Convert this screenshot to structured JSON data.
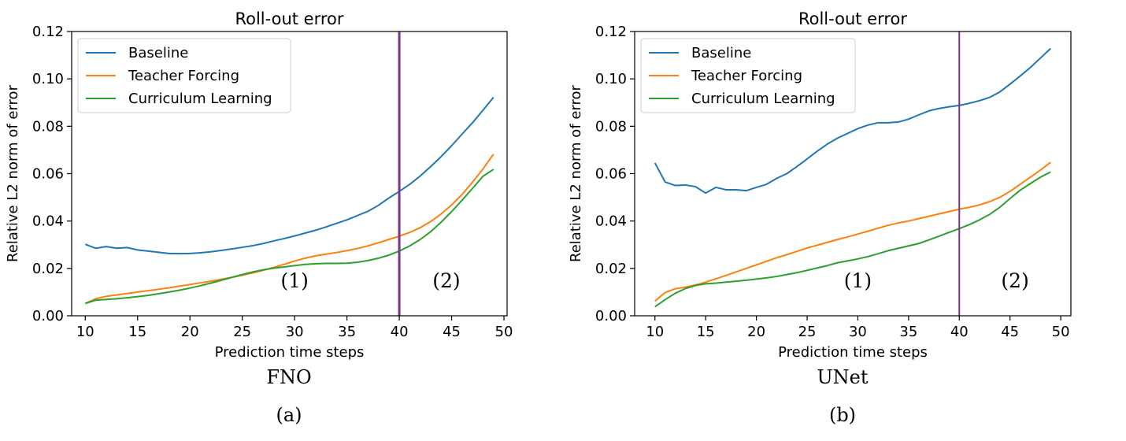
{
  "colors": {
    "baseline": "#1f77b4",
    "teacher_forcing": "#ff7f0e",
    "curriculum": "#2ca02c",
    "divider": "#7b3294",
    "axis": "#000000"
  },
  "chart_data": [
    {
      "type": "line",
      "title": "Roll-out error",
      "xlabel": "Prediction time steps",
      "ylabel": "Relative L2 norm of error",
      "caption": "FNO",
      "sublabel": "(a)",
      "xlim": [
        8.7,
        50.3
      ],
      "ylim": [
        0,
        0.12
      ],
      "xticks": [
        "10",
        "15",
        "20",
        "25",
        "30",
        "35",
        "40",
        "45",
        "50"
      ],
      "yticks": [
        "0.00",
        "0.02",
        "0.04",
        "0.06",
        "0.08",
        "0.10",
        "0.12"
      ],
      "vline": 40,
      "regions": [
        {
          "label": "(1)",
          "x": 30,
          "y": 0.012
        },
        {
          "label": "(2)",
          "x": 44.5,
          "y": 0.012
        }
      ],
      "legend_position": "top-left",
      "grid": false,
      "x": [
        10,
        11,
        12,
        13,
        14,
        15,
        16,
        17,
        18,
        19,
        20,
        21,
        22,
        23,
        24,
        25,
        26,
        27,
        28,
        29,
        30,
        31,
        32,
        33,
        34,
        35,
        36,
        37,
        38,
        39,
        40,
        41,
        42,
        43,
        44,
        45,
        46,
        47,
        48,
        49
      ],
      "series": [
        {
          "name": "Baseline",
          "color_key": "baseline",
          "values": [
            0.0302,
            0.0285,
            0.0292,
            0.0285,
            0.0288,
            0.0278,
            0.0273,
            0.0268,
            0.0263,
            0.0262,
            0.0263,
            0.0266,
            0.027,
            0.0276,
            0.0282,
            0.0289,
            0.0296,
            0.0305,
            0.0316,
            0.0326,
            0.0337,
            0.0349,
            0.0361,
            0.0375,
            0.039,
            0.0405,
            0.0423,
            0.0441,
            0.0466,
            0.0497,
            0.0525,
            0.0555,
            0.059,
            0.063,
            0.0672,
            0.0718,
            0.0767,
            0.0815,
            0.0868,
            0.0922
          ]
        },
        {
          "name": "Teacher Forcing",
          "color_key": "teacher_forcing",
          "values": [
            0.0052,
            0.0072,
            0.0082,
            0.0088,
            0.0094,
            0.01,
            0.0106,
            0.0112,
            0.0118,
            0.0125,
            0.0132,
            0.0139,
            0.0146,
            0.0154,
            0.0162,
            0.0171,
            0.0181,
            0.0192,
            0.0204,
            0.0217,
            0.0231,
            0.0243,
            0.0253,
            0.026,
            0.0267,
            0.0275,
            0.0284,
            0.0295,
            0.0308,
            0.0322,
            0.0336,
            0.0352,
            0.0372,
            0.0398,
            0.043,
            0.0468,
            0.0512,
            0.0564,
            0.062,
            0.0682
          ]
        },
        {
          "name": "Curriculum Learning",
          "color_key": "curriculum",
          "values": [
            0.0052,
            0.0066,
            0.0069,
            0.0072,
            0.0076,
            0.0081,
            0.0086,
            0.0093,
            0.01,
            0.0108,
            0.0117,
            0.0127,
            0.0138,
            0.015,
            0.0162,
            0.0174,
            0.0185,
            0.0194,
            0.0201,
            0.0206,
            0.0212,
            0.0217,
            0.022,
            0.0221,
            0.0221,
            0.0222,
            0.0226,
            0.0233,
            0.0243,
            0.0256,
            0.0273,
            0.0295,
            0.0322,
            0.0355,
            0.0395,
            0.044,
            0.0488,
            0.0538,
            0.0589,
            0.0618
          ]
        }
      ]
    },
    {
      "type": "line",
      "title": "Roll-out error",
      "xlabel": "Prediction time steps",
      "ylabel": "Relative L2 norm of error",
      "caption": "UNet",
      "sublabel": "(b)",
      "xlim": [
        8.0,
        51.0
      ],
      "ylim": [
        0,
        0.12
      ],
      "xticks": [
        "10",
        "15",
        "20",
        "25",
        "30",
        "35",
        "40",
        "45",
        "50"
      ],
      "yticks": [
        "0.00",
        "0.02",
        "0.04",
        "0.06",
        "0.08",
        "0.10",
        "0.12"
      ],
      "vline": 40,
      "regions": [
        {
          "label": "(1)",
          "x": 30,
          "y": 0.012
        },
        {
          "label": "(2)",
          "x": 45.5,
          "y": 0.012
        }
      ],
      "legend_position": "top-left",
      "grid": false,
      "x": [
        10,
        11,
        12,
        13,
        14,
        15,
        16,
        17,
        18,
        19,
        20,
        21,
        22,
        23,
        24,
        25,
        26,
        27,
        28,
        29,
        30,
        31,
        32,
        33,
        34,
        35,
        36,
        37,
        38,
        39,
        40,
        41,
        42,
        43,
        44,
        45,
        46,
        47,
        48,
        49
      ],
      "series": [
        {
          "name": "Baseline",
          "color_key": "baseline",
          "values": [
            0.0645,
            0.0565,
            0.055,
            0.0552,
            0.0545,
            0.0518,
            0.0542,
            0.0532,
            0.0532,
            0.0528,
            0.0542,
            0.0555,
            0.058,
            0.06,
            0.063,
            0.0662,
            0.0695,
            0.0725,
            0.075,
            0.077,
            0.079,
            0.0805,
            0.0815,
            0.0815,
            0.0818,
            0.083,
            0.0848,
            0.0865,
            0.0875,
            0.0882,
            0.0888,
            0.0897,
            0.0908,
            0.0922,
            0.0945,
            0.0978,
            0.1012,
            0.1048,
            0.1088,
            0.1128
          ]
        },
        {
          "name": "Teacher Forcing",
          "color_key": "teacher_forcing",
          "values": [
            0.0062,
            0.0098,
            0.0114,
            0.0121,
            0.013,
            0.0142,
            0.0156,
            0.017,
            0.0185,
            0.02,
            0.0215,
            0.023,
            0.0245,
            0.0258,
            0.0272,
            0.0286,
            0.0298,
            0.031,
            0.0322,
            0.0333,
            0.0345,
            0.0357,
            0.037,
            0.0382,
            0.0392,
            0.04,
            0.041,
            0.042,
            0.043,
            0.044,
            0.045,
            0.0458,
            0.0468,
            0.0482,
            0.05,
            0.0525,
            0.0555,
            0.0585,
            0.0615,
            0.0648
          ]
        },
        {
          "name": "Curriculum Learning",
          "color_key": "curriculum",
          "values": [
            0.0038,
            0.0068,
            0.0095,
            0.0115,
            0.0128,
            0.0135,
            0.0138,
            0.0142,
            0.0146,
            0.015,
            0.0155,
            0.016,
            0.0166,
            0.0174,
            0.0182,
            0.0192,
            0.0202,
            0.0212,
            0.0224,
            0.0232,
            0.024,
            0.025,
            0.0262,
            0.0275,
            0.0285,
            0.0295,
            0.0305,
            0.032,
            0.0336,
            0.0352,
            0.0368,
            0.0385,
            0.0405,
            0.0428,
            0.0458,
            0.0495,
            0.053,
            0.0558,
            0.0585,
            0.0607
          ]
        }
      ]
    }
  ]
}
